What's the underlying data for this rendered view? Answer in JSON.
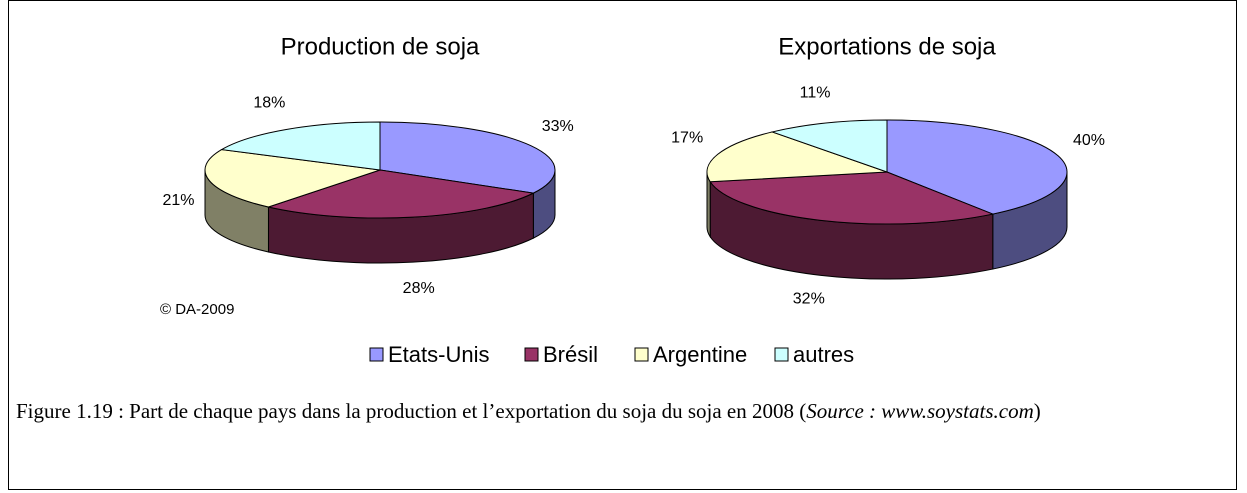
{
  "chart_data": [
    {
      "type": "pie",
      "title": "Production de soja",
      "categories": [
        "Etats-Unis",
        "Brésil",
        "Argentine",
        "autres"
      ],
      "values": [
        33,
        28,
        21,
        18
      ],
      "value_labels": [
        "33%",
        "28%",
        "21%",
        "18%"
      ],
      "colors": [
        "#9999ff",
        "#993366",
        "#ffffcc",
        "#ccffff"
      ]
    },
    {
      "type": "pie",
      "title": "Exportations de soja",
      "categories": [
        "Etats-Unis",
        "Brésil",
        "Argentine",
        "autres"
      ],
      "values": [
        40,
        32,
        17,
        11
      ],
      "value_labels": [
        "40%",
        "32%",
        "17%",
        "11%"
      ],
      "colors": [
        "#9999ff",
        "#993366",
        "#ffffcc",
        "#ccffff"
      ]
    }
  ],
  "copyright": "© DA-2009",
  "caption": [
    "Figure 1.19 : Part de chaque pays dans la production et l’exportation du soja du soja en 2008 (",
    "Source : www.soystats.com",
    ")"
  ]
}
